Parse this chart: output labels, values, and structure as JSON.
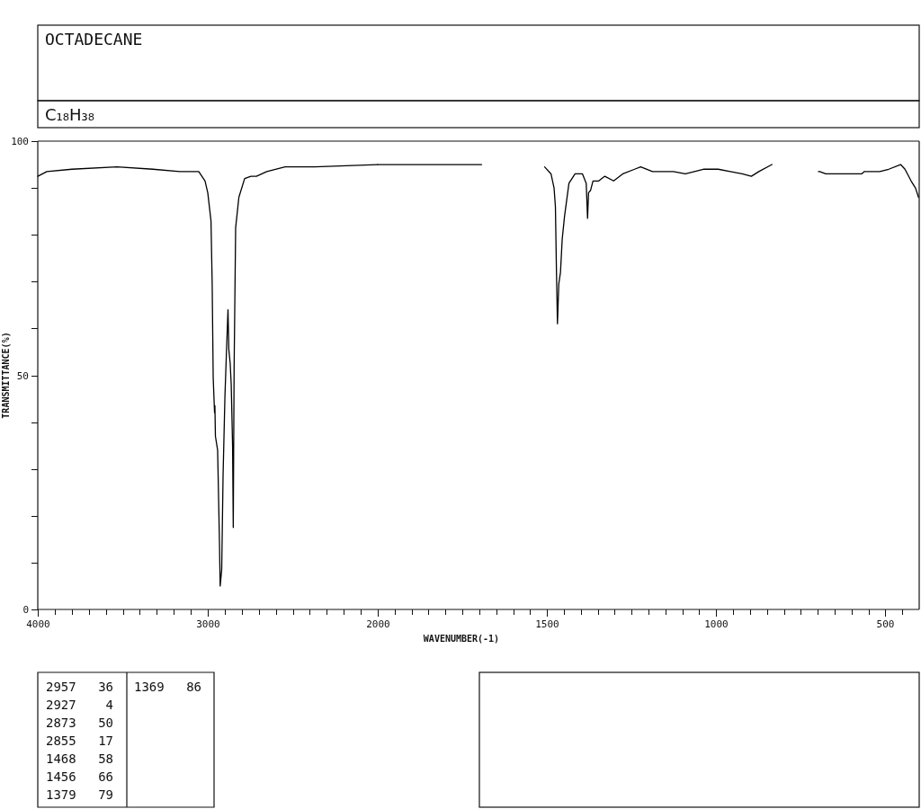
{
  "chart_data": [
    {
      "type": "line",
      "title": "OCTADECANE",
      "subtitle": "C₁₈H₃₈",
      "xlabel": "WAVENUMBER(-1)",
      "ylabel": "TRANSMITTANCE(%)",
      "xlim": [
        4000,
        2000
      ],
      "ylim": [
        0,
        100
      ],
      "xticks": [
        4000,
        {
          "value": 3900,
          "label": null
        },
        {
          "value": 3800,
          "label": null
        },
        {
          "value": 3700,
          "label": null
        },
        {
          "value": 3600,
          "label": null
        },
        {
          "value": 3500,
          "label": null
        },
        {
          "value": 3400,
          "label": null
        },
        {
          "value": 3300,
          "label": null
        },
        {
          "value": 3200,
          "label": null
        },
        {
          "value": 3100,
          "label": null
        },
        3000,
        {
          "value": 2900,
          "label": null
        },
        {
          "value": 2800,
          "label": null
        },
        {
          "value": 2700,
          "label": null
        },
        {
          "value": 2600,
          "label": null
        },
        {
          "value": 2500,
          "label": null
        },
        {
          "value": 2400,
          "label": null
        },
        {
          "value": 2300,
          "label": null
        },
        {
          "value": 2200,
          "label": null
        },
        {
          "value": 2100,
          "label": null
        },
        2000
      ],
      "yticks": [
        0,
        {
          "value": 10,
          "label": null
        },
        {
          "value": 20,
          "label": null
        },
        {
          "value": 30,
          "label": null
        },
        {
          "value": 40,
          "label": null
        },
        50,
        {
          "value": 60,
          "label": null
        },
        {
          "value": 70,
          "label": null
        },
        {
          "value": 80,
          "label": null
        },
        {
          "value": 90,
          "label": null
        },
        100
      ],
      "x": [
        4000,
        3947,
        3799,
        3534,
        3323,
        3164,
        3053,
        3016,
        3000,
        2981,
        2974,
        2968,
        2960,
        2958,
        2955,
        2942,
        2931,
        2927,
        2918,
        2910,
        2899,
        2890,
        2881,
        2876,
        2868,
        2862,
        2854,
        2850,
        2845,
        2836,
        2817,
        2783,
        2746,
        2714,
        2653,
        2545,
        2370,
        2000
      ],
      "series": [
        {
          "color": "#000000",
          "values": [
            92.5,
            93.5,
            94,
            94.5,
            94,
            93.5,
            93.5,
            91.5,
            89,
            83,
            69.5,
            49.5,
            42,
            43.5,
            37,
            34,
            14,
            5,
            8.5,
            28.5,
            45.5,
            55,
            64,
            55.5,
            52.5,
            48,
            35,
            17.5,
            51.5,
            81.5,
            88,
            92,
            92.5,
            92.5,
            93.5,
            94.5,
            94.5,
            95
          ]
        }
      ]
    },
    {
      "type": "line",
      "xlim": [
        2000,
        400
      ],
      "ylim": [
        0,
        100
      ],
      "tick_labels": "x",
      "xticks": [
        {
          "value": 1950,
          "label": null
        },
        {
          "value": 1900,
          "label": null
        },
        {
          "value": 1850,
          "label": null
        },
        {
          "value": 1800,
          "label": null
        },
        {
          "value": 1750,
          "label": null
        },
        {
          "value": 1700,
          "label": null
        },
        {
          "value": 1650,
          "label": null
        },
        {
          "value": 1600,
          "label": null
        },
        {
          "value": 1550,
          "label": null
        },
        1500,
        {
          "value": 1450,
          "label": null
        },
        {
          "value": 1400,
          "label": null
        },
        {
          "value": 1350,
          "label": null
        },
        {
          "value": 1300,
          "label": null
        },
        {
          "value": 1250,
          "label": null
        },
        {
          "value": 1200,
          "label": null
        },
        {
          "value": 1150,
          "label": null
        },
        {
          "value": 1100,
          "label": null
        },
        {
          "value": 1050,
          "label": null
        },
        1000,
        {
          "value": 950,
          "label": null
        },
        {
          "value": 900,
          "label": null
        },
        {
          "value": 850,
          "label": null
        },
        {
          "value": 800,
          "label": null
        },
        {
          "value": 750,
          "label": null
        },
        {
          "value": 700,
          "label": null
        },
        {
          "value": 650,
          "label": null
        },
        {
          "value": 600,
          "label": null
        },
        {
          "value": 550,
          "label": null
        },
        500,
        {
          "value": 450,
          "label": null
        }
      ],
      "x": [
        2000,
        1984,
        1947,
        1788,
        1693,
        1600,
        1507,
        1488,
        1479,
        1475,
        1472,
        1469,
        1465,
        1460,
        1455,
        1448,
        1435,
        1417,
        1395,
        1384,
        1380,
        1377,
        1371,
        1364,
        1347,
        1329,
        1303,
        1276,
        1241,
        1223,
        1188,
        1126,
        1091,
        1038,
        994,
        958,
        923,
        896,
        874,
        835,
        770,
        698,
        694,
        676,
        570,
        562,
        517,
        490,
        455,
        442,
        424,
        411,
        402
      ],
      "series": [
        {
          "color": "#000000",
          "values": [
            95,
            95,
            95,
            95,
            95,
            null,
            94.5,
            93,
            90,
            86,
            72.5,
            61,
            69.5,
            72,
            79,
            84,
            91,
            93,
            93,
            91,
            83.5,
            89,
            89.5,
            91.5,
            91.5,
            92.5,
            91.5,
            93,
            94,
            94.5,
            93.5,
            93.5,
            93,
            94,
            94,
            93.5,
            93,
            92.5,
            93.5,
            95,
            null,
            93.5,
            93.5,
            93,
            93,
            93.5,
            93.5,
            94,
            95,
            94,
            91.5,
            90,
            88
          ]
        }
      ]
    },
    {
      "type": "other",
      "categories": [
        "2957",
        "2927",
        "2873",
        "2855",
        "1468",
        "1456",
        "1379",
        "1369"
      ],
      "values": [
        36,
        4,
        50,
        17,
        58,
        66,
        79,
        86
      ],
      "data_labels": true
    }
  ]
}
